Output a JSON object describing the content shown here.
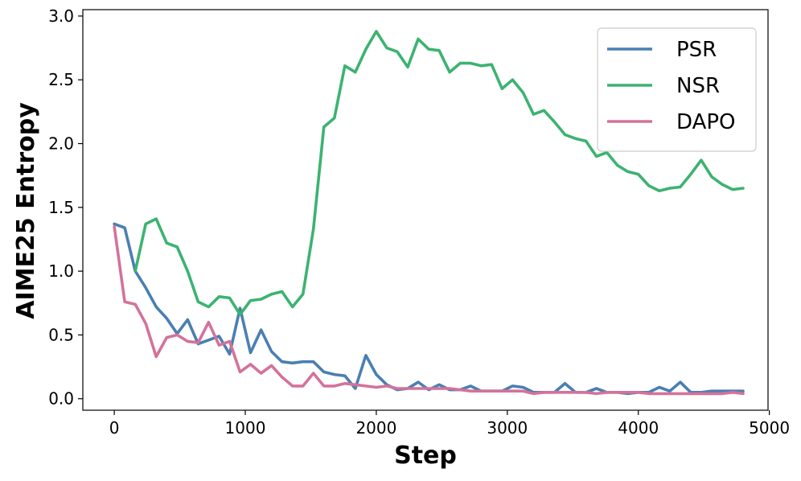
{
  "chart_data": {
    "type": "line",
    "xlabel": "Step",
    "ylabel": "AIME25 Entropy",
    "xlim": [
      -240,
      4990
    ],
    "ylim": [
      -0.09,
      3.05
    ],
    "xticks": [
      0,
      1000,
      2000,
      3000,
      4000,
      5000
    ],
    "yticks": [
      0.0,
      0.5,
      1.0,
      1.5,
      2.0,
      2.5,
      3.0
    ],
    "grid": false,
    "legend_position": "top-right",
    "series": [
      {
        "name": "PSR",
        "color": "#4a7fb2",
        "x": [
          0,
          80,
          160,
          240,
          320,
          400,
          480,
          560,
          640,
          720,
          800,
          880,
          960,
          1040,
          1120,
          1200,
          1280,
          1360,
          1440,
          1520,
          1600,
          1680,
          1760,
          1840,
          1920,
          2000,
          2080,
          2160,
          2240,
          2320,
          2400,
          2480,
          2560,
          2640,
          2720,
          2800,
          2880,
          2960,
          3040,
          3120,
          3200,
          3280,
          3360,
          3440,
          3520,
          3600,
          3680,
          3760,
          3840,
          3920,
          4000,
          4080,
          4160,
          4240,
          4320,
          4400,
          4480,
          4560,
          4640,
          4720,
          4800
        ],
        "values": [
          1.37,
          1.34,
          1.0,
          0.87,
          0.72,
          0.63,
          0.51,
          0.62,
          0.43,
          0.46,
          0.49,
          0.35,
          0.71,
          0.36,
          0.54,
          0.37,
          0.29,
          0.28,
          0.29,
          0.29,
          0.21,
          0.19,
          0.18,
          0.08,
          0.34,
          0.19,
          0.11,
          0.07,
          0.08,
          0.13,
          0.07,
          0.11,
          0.07,
          0.07,
          0.1,
          0.06,
          0.06,
          0.06,
          0.1,
          0.09,
          0.05,
          0.05,
          0.05,
          0.12,
          0.05,
          0.05,
          0.08,
          0.05,
          0.05,
          0.04,
          0.05,
          0.05,
          0.09,
          0.06,
          0.13,
          0.05,
          0.05,
          0.06,
          0.06,
          0.06,
          0.06
        ]
      },
      {
        "name": "NSR",
        "color": "#3cb371",
        "x": [
          160,
          240,
          320,
          400,
          480,
          560,
          640,
          720,
          800,
          880,
          960,
          1040,
          1120,
          1200,
          1280,
          1360,
          1440,
          1520,
          1600,
          1680,
          1760,
          1840,
          1920,
          2000,
          2080,
          2160,
          2240,
          2320,
          2400,
          2480,
          2560,
          2640,
          2720,
          2800,
          2880,
          2960,
          3040,
          3120,
          3200,
          3280,
          3360,
          3440,
          3520,
          3600,
          3680,
          3760,
          3840,
          3920,
          4000,
          4080,
          4160,
          4240,
          4320,
          4400,
          4480,
          4560,
          4640,
          4720,
          4800
        ],
        "values": [
          1.0,
          1.37,
          1.41,
          1.22,
          1.19,
          1.0,
          0.76,
          0.72,
          0.8,
          0.79,
          0.66,
          0.77,
          0.78,
          0.82,
          0.84,
          0.72,
          0.82,
          1.33,
          2.13,
          2.2,
          2.61,
          2.56,
          2.74,
          2.88,
          2.75,
          2.72,
          2.6,
          2.82,
          2.74,
          2.73,
          2.56,
          2.63,
          2.63,
          2.61,
          2.62,
          2.43,
          2.5,
          2.4,
          2.23,
          2.26,
          2.17,
          2.07,
          2.04,
          2.02,
          1.9,
          1.93,
          1.83,
          1.78,
          1.76,
          1.67,
          1.63,
          1.65,
          1.66,
          1.76,
          1.87,
          1.74,
          1.68,
          1.64,
          1.65
        ]
      },
      {
        "name": "DAPO",
        "color": "#d4729a",
        "x": [
          0,
          80,
          160,
          240,
          320,
          400,
          480,
          560,
          640,
          720,
          800,
          880,
          960,
          1040,
          1120,
          1200,
          1280,
          1360,
          1440,
          1520,
          1600,
          1680,
          1760,
          1840,
          1920,
          2000,
          2080,
          2160,
          2240,
          2320,
          2400,
          2480,
          2560,
          2640,
          2720,
          2800,
          2880,
          2960,
          3040,
          3120,
          3200,
          3280,
          3360,
          3440,
          3520,
          3600,
          3680,
          3760,
          3840,
          3920,
          4000,
          4080,
          4160,
          4240,
          4320,
          4400,
          4480,
          4560,
          4640,
          4720,
          4800
        ],
        "values": [
          1.35,
          0.76,
          0.74,
          0.59,
          0.33,
          0.48,
          0.5,
          0.45,
          0.44,
          0.6,
          0.42,
          0.45,
          0.21,
          0.27,
          0.2,
          0.26,
          0.17,
          0.1,
          0.1,
          0.2,
          0.1,
          0.1,
          0.12,
          0.11,
          0.1,
          0.09,
          0.1,
          0.08,
          0.08,
          0.08,
          0.08,
          0.08,
          0.08,
          0.07,
          0.06,
          0.06,
          0.06,
          0.06,
          0.06,
          0.06,
          0.04,
          0.05,
          0.05,
          0.05,
          0.05,
          0.05,
          0.04,
          0.05,
          0.05,
          0.05,
          0.05,
          0.04,
          0.04,
          0.04,
          0.04,
          0.04,
          0.04,
          0.04,
          0.04,
          0.05,
          0.04
        ]
      }
    ]
  }
}
